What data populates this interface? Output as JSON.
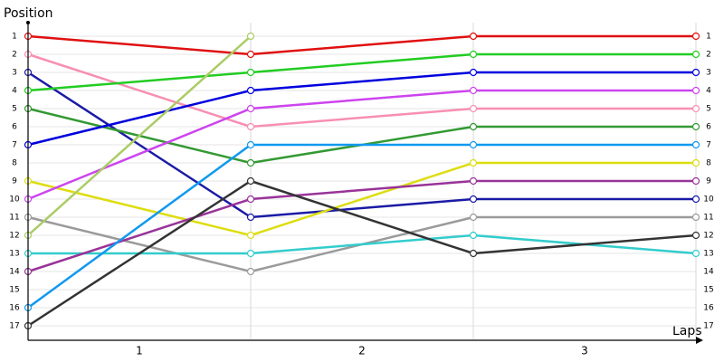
{
  "chart_data": {
    "type": "line",
    "y_label": "Position",
    "x_label": "Laps",
    "categories": [
      "1",
      "2",
      "3"
    ],
    "x": [
      0,
      1,
      2,
      3
    ],
    "xlim": [
      0,
      3
    ],
    "ylim": [
      0.25,
      17.75
    ],
    "y_inverted": true,
    "yticks": [
      1,
      2,
      3,
      4,
      5,
      6,
      7,
      8,
      9,
      10,
      11,
      12,
      13,
      14,
      15,
      16,
      17
    ],
    "grid": true,
    "series": [
      {
        "color": "#e01010",
        "values": [
          1,
          2,
          1,
          1
        ]
      },
      {
        "color": "#f78fb3",
        "values": [
          2,
          6,
          5,
          5
        ]
      },
      {
        "color": "#1a1aa6",
        "values": [
          3,
          11,
          10,
          10
        ]
      },
      {
        "color": "#22cc22",
        "values": [
          4,
          3,
          2,
          2
        ]
      },
      {
        "color": "#339933",
        "values": [
          5,
          8,
          6,
          6
        ]
      },
      {
        "color": "#0000dd",
        "values": [
          7,
          4,
          3,
          3
        ]
      },
      {
        "color": "#dddd11",
        "values": [
          9,
          12,
          8,
          8
        ]
      },
      {
        "color": "#cc44ee",
        "values": [
          10,
          5,
          4,
          4
        ]
      },
      {
        "color": "#9a9a9a",
        "values": [
          11,
          14,
          11,
          11
        ]
      },
      {
        "color": "#aacc66",
        "values": [
          12,
          1,
          null,
          null
        ]
      },
      {
        "color": "#33cccc",
        "values": [
          13,
          13,
          12,
          13
        ]
      },
      {
        "color": "#993399",
        "values": [
          14,
          10,
          9,
          9
        ]
      },
      {
        "color": "#1199ee",
        "values": [
          16,
          7,
          7,
          7
        ]
      },
      {
        "color": "#333333",
        "values": [
          17,
          9,
          13,
          12
        ]
      }
    ]
  }
}
